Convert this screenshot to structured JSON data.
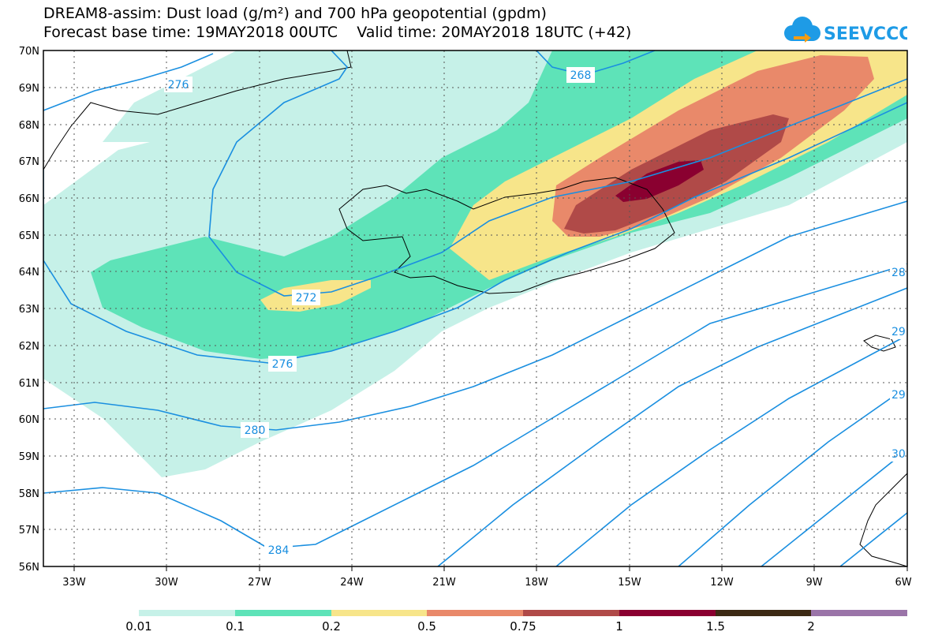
{
  "title_line1": "DREAM8-assim: Dust load (g/m²) and 700 hPa geopotential (gpdm)",
  "title_line2": "Forecast base time: 19MAY2018 00UTC    Valid time: 20MAY2018 18UTC (+42)",
  "logo_text": "SEEVCCC",
  "lat_labels": [
    "70N",
    "69N",
    "68N",
    "67N",
    "66N",
    "65N",
    "64N",
    "63N",
    "62N",
    "61N",
    "60N",
    "59N",
    "58N",
    "57N",
    "56N"
  ],
  "lon_labels": [
    "33W",
    "30W",
    "27W",
    "24W",
    "21W",
    "18W",
    "15W",
    "12W",
    "9W",
    "6W"
  ],
  "contour_labels": [
    "276",
    "268",
    "272",
    "276",
    "280",
    "284",
    "28",
    "29",
    "29",
    "30"
  ],
  "colorbar": {
    "labels": [
      "0.01",
      "0.1",
      "0.2",
      "0.5",
      "0.75",
      "1",
      "1.5",
      "2"
    ],
    "colors": [
      "#c6f1e8",
      "#5ee3b8",
      "#f7e58a",
      "#e9896a",
      "#b04a48",
      "#8a0030",
      "#3d2a14",
      "#9a74a8"
    ]
  },
  "colors": {
    "dust_0_01": "#c6f1e8",
    "dust_0_1": "#5ee3b8",
    "dust_0_2": "#f7e58a",
    "dust_0_5": "#e9896a",
    "dust_0_75": "#b04a48",
    "dust_1": "#8a0030",
    "contour": "#1a8fe0"
  }
}
